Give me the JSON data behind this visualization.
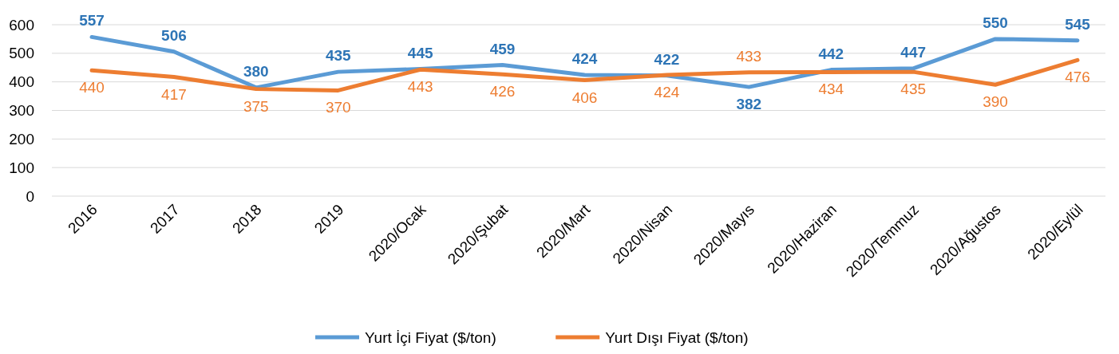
{
  "chart_data": {
    "type": "line",
    "categories": [
      "2016",
      "2017",
      "2018",
      "2019",
      "2020/Ocak",
      "2020/Şubat",
      "2020/Mart",
      "2020/Nisan",
      "2020/Mayıs",
      "2020/Haziran",
      "2020/Temmuz",
      "2020/Ağustos",
      "2020/Eylül"
    ],
    "series": [
      {
        "name": "Yurt İçi Fiyat ($/ton)",
        "color": "#5b9bd5",
        "values": [
          557,
          506,
          380,
          435,
          445,
          459,
          424,
          422,
          382,
          442,
          447,
          550,
          545
        ]
      },
      {
        "name": "Yurt Dışı Fiyat ($/ton)",
        "color": "#ed7d31",
        "values": [
          440,
          417,
          375,
          370,
          443,
          426,
          406,
          424,
          433,
          434,
          435,
          390,
          476
        ]
      }
    ],
    "ylim": [
      0,
      600
    ],
    "yticks": [
      0,
      100,
      200,
      300,
      400,
      500,
      600
    ],
    "grid": "y",
    "legend": "bottom",
    "data_labels": true,
    "marker": "none",
    "line_style": "solid"
  }
}
